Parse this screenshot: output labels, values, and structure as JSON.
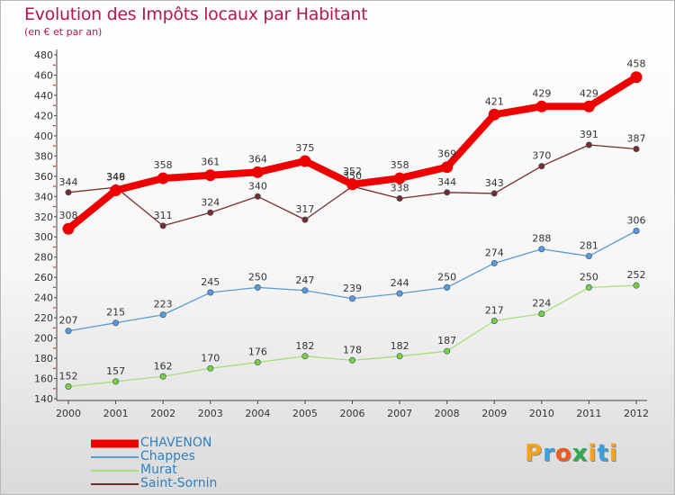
{
  "title": "Evolution des Impôts locaux par Habitant",
  "subtitle": "(en € et par an)",
  "logo": {
    "letters": [
      "P",
      "r",
      "o",
      "x",
      "i",
      "t",
      "i"
    ],
    "colors": [
      "#f7a21b",
      "#3aa0e0",
      "#f25a1b",
      "#2dac52",
      "#f7a21b",
      "#3aa0e0",
      "#f7a21b"
    ]
  },
  "chart_data": {
    "type": "line",
    "title": "Evolution des Impôts locaux par Habitant",
    "subtitle": "(en € et par an)",
    "xlabel": "",
    "ylabel": "",
    "x": [
      "2000",
      "2001",
      "2002",
      "2003",
      "2004",
      "2005",
      "2006",
      "2007",
      "2008",
      "2009",
      "2010",
      "2011",
      "2012"
    ],
    "ylim": [
      140,
      480
    ],
    "yticks": [
      140,
      160,
      180,
      200,
      220,
      240,
      260,
      280,
      300,
      320,
      340,
      360,
      380,
      400,
      420,
      440,
      460,
      480
    ],
    "grid": false,
    "legend_position": "bottom-left",
    "series": [
      {
        "name": "CHAVENON",
        "color": "#ee0000",
        "marker_fill": "#ee0000",
        "emphasis": true,
        "values": [
          308,
          346,
          358,
          361,
          364,
          375,
          352,
          358,
          369,
          421,
          429,
          429,
          458
        ]
      },
      {
        "name": "Chappes",
        "color": "#5b9bd5",
        "marker_fill": "#5b9bd5",
        "emphasis": false,
        "values": [
          207,
          215,
          223,
          245,
          250,
          247,
          239,
          244,
          250,
          274,
          288,
          281,
          306
        ]
      },
      {
        "name": "Murat",
        "color": "#a6e07a",
        "marker_fill": "#7ccf3e",
        "emphasis": false,
        "values": [
          152,
          157,
          162,
          170,
          176,
          182,
          178,
          182,
          187,
          217,
          224,
          250,
          252
        ]
      },
      {
        "name": "Saint-Sornin",
        "color": "#7a2b2b",
        "marker_fill": "#7a2b2b",
        "emphasis": false,
        "values": [
          344,
          349,
          311,
          324,
          340,
          317,
          350,
          338,
          344,
          343,
          370,
          391,
          387
        ]
      }
    ]
  }
}
